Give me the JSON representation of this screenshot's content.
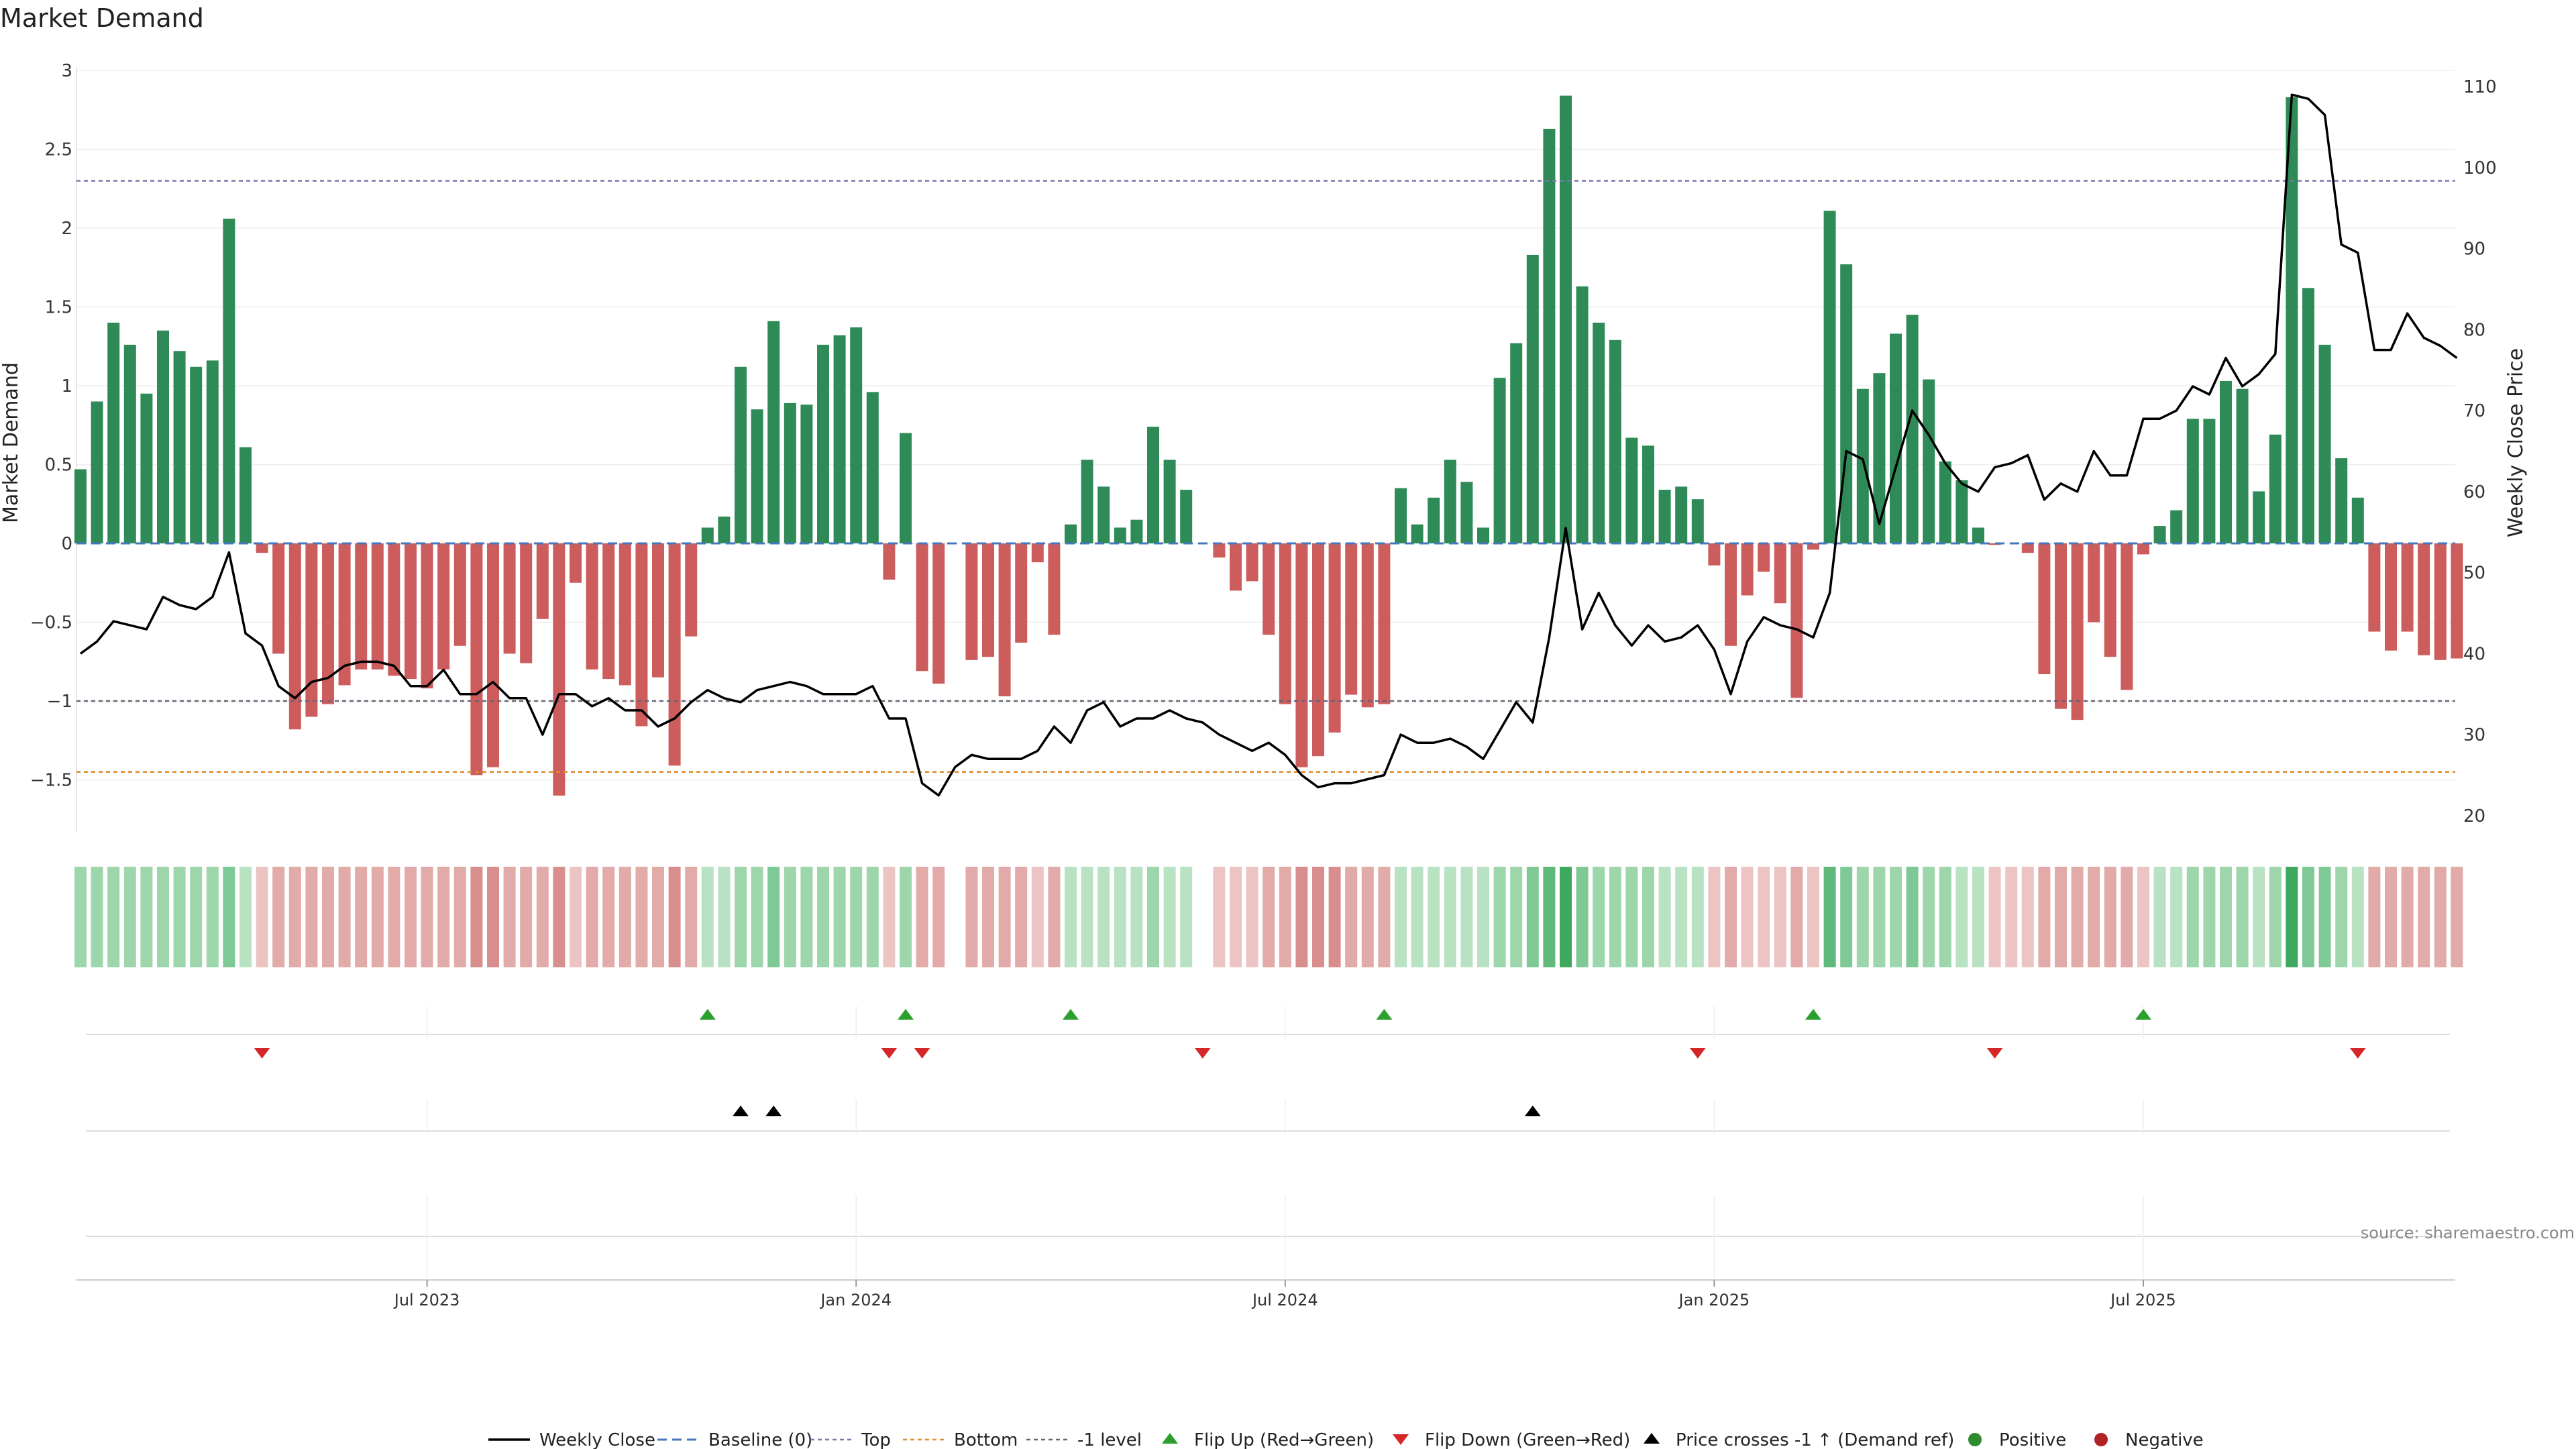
{
  "chart_data": {
    "type": "bar",
    "title": "Market Demand",
    "ylabel": "Market Demand",
    "y2label": "Weekly Close Price",
    "ylim": [
      -1.83,
      3.0
    ],
    "y2lim": [
      18,
      112
    ],
    "yticks": [
      -1.5,
      -1,
      -0.5,
      0,
      0.5,
      1,
      1.5,
      2,
      2.5,
      3
    ],
    "ytick_labels": [
      "−1.5",
      "−1",
      "−0.5",
      "0",
      "0.5",
      "1",
      "1.5",
      "2",
      "2.5",
      "3"
    ],
    "y2ticks": [
      20,
      30,
      40,
      50,
      60,
      70,
      80,
      90,
      100,
      110
    ],
    "xticks": [
      {
        "label": "Jul 2023",
        "index": 21
      },
      {
        "label": "Jan 2024",
        "index": 47
      },
      {
        "label": "Jul 2024",
        "index": 73
      },
      {
        "label": "Jan 2025",
        "index": 99
      },
      {
        "label": "Jul 2025",
        "index": 125
      }
    ],
    "reference_lines": {
      "baseline": 0,
      "top": 2.3,
      "bottom": -1.45,
      "minus_one": -1.0
    },
    "demand": [
      0.47,
      0.9,
      1.4,
      1.26,
      0.95,
      1.35,
      1.22,
      1.12,
      1.16,
      2.06,
      0.61,
      -0.06,
      -0.7,
      -1.18,
      -1.1,
      -1.02,
      -0.9,
      -0.8,
      -0.8,
      -0.84,
      -0.86,
      -0.92,
      -0.8,
      -0.65,
      -1.47,
      -1.42,
      -0.7,
      -0.76,
      -0.48,
      -1.6,
      -0.25,
      -0.8,
      -0.86,
      -0.9,
      -1.16,
      -0.85,
      -1.41,
      -0.59,
      0.1,
      0.17,
      1.12,
      0.85,
      1.41,
      0.89,
      0.88,
      1.26,
      1.32,
      1.37,
      0.96,
      -0.23,
      0.7,
      -0.81,
      -0.89,
      0.0,
      -0.74,
      -0.72,
      -0.97,
      -0.63,
      -0.12,
      -0.58,
      0.12,
      0.53,
      0.36,
      0.1,
      0.15,
      0.74,
      0.53,
      0.34,
      0.0,
      -0.09,
      -0.3,
      -0.24,
      -0.58,
      -1.02,
      -1.42,
      -1.35,
      -1.2,
      -0.96,
      -1.04,
      -1.02,
      0.35,
      0.12,
      0.29,
      0.53,
      0.39,
      0.1,
      1.05,
      1.27,
      1.83,
      2.63,
      2.84,
      1.63,
      1.4,
      1.29,
      0.67,
      0.62,
      0.34,
      0.36,
      0.28,
      -0.14,
      -0.65,
      -0.33,
      -0.18,
      -0.38,
      -0.98,
      -0.04,
      2.11,
      1.77,
      0.98,
      1.08,
      1.33,
      1.45,
      1.04,
      0.52,
      0.4,
      0.1,
      -0.01,
      0.0,
      -0.06,
      -0.83,
      -1.05,
      -1.12,
      -0.5,
      -0.72,
      -0.93,
      -0.07,
      0.11,
      0.21,
      0.79,
      0.79,
      1.03,
      0.98,
      0.33,
      0.69,
      2.83,
      1.62,
      1.26,
      0.54,
      0.29,
      -0.56,
      -0.68,
      -0.56,
      -0.71,
      -0.74,
      -0.73
    ],
    "strip_intensity": [
      2,
      2,
      2,
      2,
      2,
      2,
      2,
      2,
      2,
      3,
      1,
      -1,
      -2,
      -2,
      -2,
      -2,
      -2,
      -2,
      -2,
      -2,
      -2,
      -2,
      -2,
      -2,
      -3,
      -3,
      -2,
      -2,
      -2,
      -3,
      -1,
      -2,
      -2,
      -2,
      -2,
      -2,
      -3,
      -2,
      1,
      1,
      2,
      2,
      3,
      2,
      2,
      2,
      2,
      2,
      2,
      -1,
      2,
      -2,
      -2,
      0,
      -2,
      -2,
      -2,
      -2,
      -1,
      -2,
      1,
      1,
      1,
      1,
      1,
      2,
      1,
      1,
      0,
      -1,
      -1,
      -1,
      -2,
      -2,
      -3,
      -3,
      -3,
      -2,
      -2,
      -2,
      1,
      1,
      1,
      1,
      1,
      1,
      2,
      2,
      3,
      4,
      5,
      3,
      2,
      2,
      2,
      2,
      1,
      1,
      1,
      -1,
      -2,
      -1,
      -1,
      -1,
      -2,
      -1,
      4,
      3,
      2,
      2,
      2,
      3,
      2,
      2,
      1,
      1,
      -1,
      -1,
      -1,
      -2,
      -2,
      -2,
      -2,
      -2,
      -2,
      -1,
      1,
      1,
      2,
      2,
      2,
      2,
      1,
      2,
      5,
      3,
      3,
      2,
      1,
      -2,
      -2,
      -2,
      -2,
      -2,
      -2
    ],
    "price": [
      40,
      41.5,
      44,
      43.5,
      43,
      47,
      46,
      45.5,
      47,
      52.5,
      42.5,
      41,
      36,
      34.5,
      36.5,
      37,
      38.5,
      39,
      39,
      38.5,
      36,
      36,
      38,
      35,
      35,
      36.5,
      34.5,
      34.5,
      30,
      35,
      35,
      33.5,
      34.5,
      33,
      33,
      31,
      32,
      34,
      35.5,
      34.5,
      34,
      35.5,
      36,
      36.5,
      36,
      35,
      35,
      35,
      36,
      32,
      32,
      24,
      22.5,
      26,
      27.5,
      27,
      27,
      27,
      28,
      31,
      29,
      33,
      34,
      31,
      32,
      32,
      33,
      32,
      31.5,
      30,
      29,
      28,
      29,
      27.5,
      25,
      23.5,
      24,
      24,
      24.5,
      25,
      30,
      29,
      29,
      29.5,
      28.5,
      27,
      30.5,
      34,
      31.5,
      42,
      55.5,
      43,
      47.5,
      43.5,
      41,
      43.5,
      41.5,
      42,
      43.5,
      40.5,
      35,
      41.5,
      44.5,
      43.5,
      43,
      42,
      47.5,
      65,
      64,
      56,
      63,
      70,
      67,
      63.5,
      61,
      60,
      63,
      63.5,
      64.5,
      59,
      61,
      60,
      65,
      62,
      62,
      69,
      69,
      70,
      73,
      72,
      76.5,
      73,
      74.5,
      77,
      109,
      108.5,
      106.5,
      90.5,
      89.5,
      77.5,
      77.5,
      82,
      79,
      78,
      76.5
    ],
    "flip_up_index": [
      38,
      50,
      60,
      79,
      105,
      125
    ],
    "flip_down_index": [
      11,
      49,
      51,
      68,
      98,
      116,
      138
    ],
    "price_cross_index": [
      40,
      42,
      88
    ],
    "legend": [
      "Weekly Close",
      "Baseline (0)",
      "Top",
      "Bottom",
      "-1 level",
      "Flip Up (Red→Green)",
      "Flip Down (Green→Red)",
      "Price crosses -1 ↑ (Demand ref)",
      "Positive",
      "Negative"
    ],
    "source": "source: sharemaestro.com"
  },
  "colors": {
    "positive": "#2e8b57",
    "negative": "#cd5c5c",
    "price": "#000000",
    "baseline": "#4477bb",
    "top": "#7777aa",
    "bottom": "#e08c2a",
    "minus_one": "#666677",
    "flip_up": "#2ca02c",
    "flip_down": "#d62728",
    "cross": "#000000",
    "legend_positive": "#2e8b2e",
    "legend_negative": "#b22222"
  }
}
